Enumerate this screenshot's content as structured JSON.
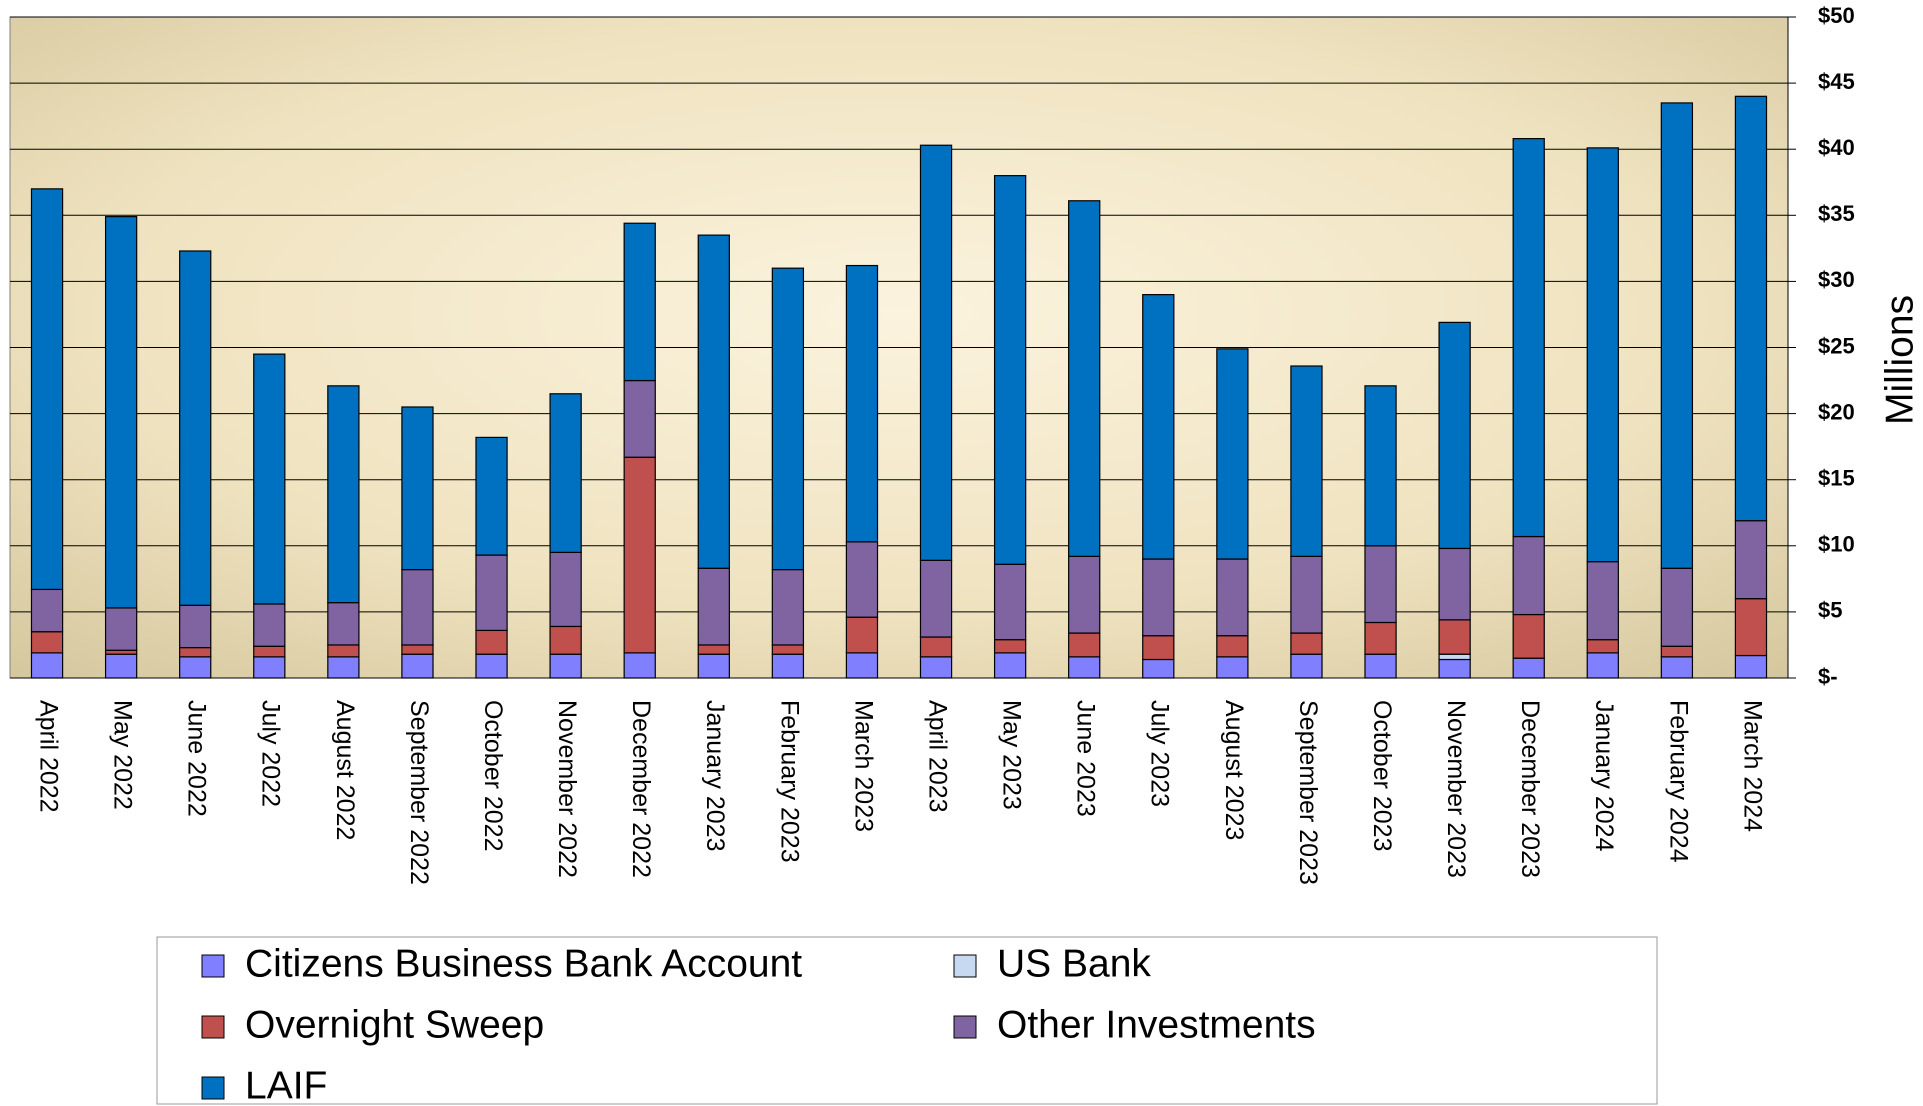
{
  "chart_data": {
    "type": "stacked_bar",
    "y_axis_label": "Millions",
    "categories": [
      "April 2022",
      "May 2022",
      "June 2022",
      "July 2022",
      "August 2022",
      "September 2022",
      "October 2022",
      "November 2022",
      "December 2022",
      "January 2023",
      "February 2023",
      "March 2023",
      "April 2023",
      "May 2023",
      "June 2023",
      "July 2023",
      "August 2023",
      "September 2023",
      "October 2023",
      "November 2023",
      "December 2023",
      "January 2024",
      "February 2024",
      "March 2024"
    ],
    "series": [
      {
        "name": "Citizens Business Bank Account",
        "color": "#8080ff",
        "values": [
          1.9,
          1.8,
          1.6,
          1.6,
          1.6,
          1.8,
          1.8,
          1.8,
          1.9,
          1.8,
          1.8,
          1.9,
          1.6,
          1.9,
          1.6,
          1.4,
          1.6,
          1.8,
          1.8,
          1.4,
          1.5,
          1.9,
          1.6,
          1.7
        ]
      },
      {
        "name": "US Bank",
        "color": "#c6d9f1",
        "values": [
          0,
          0,
          0,
          0,
          0,
          0,
          0,
          0,
          0,
          0,
          0,
          0,
          0,
          0,
          0,
          0,
          0,
          0,
          0,
          0.4,
          0,
          0,
          0,
          0
        ]
      },
      {
        "name": "Overnight Sweep",
        "color": "#c0504d",
        "values": [
          1.6,
          0.3,
          0.7,
          0.8,
          0.9,
          0.7,
          1.8,
          2.1,
          14.8,
          0.7,
          0.7,
          2.7,
          1.5,
          1.0,
          1.8,
          1.8,
          1.6,
          1.6,
          2.4,
          2.6,
          3.3,
          1.0,
          0.8,
          4.3
        ]
      },
      {
        "name": "Other Investments",
        "color": "#8064a2",
        "values": [
          3.2,
          3.2,
          3.2,
          3.2,
          3.2,
          5.7,
          5.7,
          5.6,
          5.8,
          5.8,
          5.7,
          5.7,
          5.8,
          5.7,
          5.8,
          5.8,
          5.8,
          5.8,
          5.8,
          5.4,
          5.9,
          5.9,
          5.9,
          5.9
        ]
      },
      {
        "name": "LAIF",
        "color": "#0070c0",
        "values": [
          30.3,
          29.6,
          26.8,
          18.9,
          16.4,
          12.3,
          8.9,
          12.0,
          11.9,
          25.2,
          22.8,
          20.9,
          31.4,
          29.4,
          26.9,
          20.0,
          15.9,
          14.4,
          12.1,
          17.1,
          30.1,
          31.3,
          35.2,
          32.1
        ]
      }
    ],
    "ylim": [
      0,
      50
    ],
    "yticks": [
      {
        "value": 0,
        "label": "$-"
      },
      {
        "value": 5,
        "label": "$5"
      },
      {
        "value": 10,
        "label": "$10"
      },
      {
        "value": 15,
        "label": "$15"
      },
      {
        "value": 20,
        "label": "$20"
      },
      {
        "value": 25,
        "label": "$25"
      },
      {
        "value": 30,
        "label": "$30"
      },
      {
        "value": 35,
        "label": "$35"
      },
      {
        "value": 40,
        "label": "$40"
      },
      {
        "value": 45,
        "label": "$45"
      },
      {
        "value": 50,
        "label": "$50"
      }
    ],
    "grid": true
  }
}
